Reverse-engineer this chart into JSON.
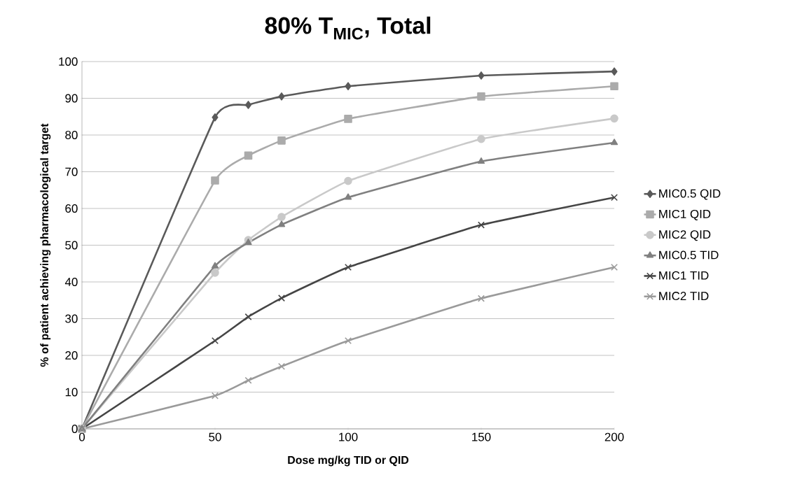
{
  "chart_data": {
    "type": "line",
    "title": "80% T$_{MIC}$, Total",
    "xlabel": "Dose mg/kg TID or QID",
    "ylabel": "% of patient achieving pharmacological target",
    "x": [
      0,
      50,
      62.5,
      75,
      100,
      150,
      200
    ],
    "xlim": [
      0,
      200
    ],
    "xticks": [
      0,
      50,
      100,
      150,
      200
    ],
    "ylim": [
      0,
      100
    ],
    "yticks": [
      0,
      10,
      20,
      30,
      40,
      50,
      60,
      70,
      80,
      90,
      100
    ],
    "grid": "y",
    "legend": "right",
    "line_style": "solid",
    "series": [
      {
        "name": "MIC0.5 QID",
        "color": "#5a5a5a",
        "marker": "diamond",
        "values": [
          0,
          84.8,
          88.2,
          90.5,
          93.3,
          96.2,
          97.3
        ]
      },
      {
        "name": "MIC1 QID",
        "color": "#ababab",
        "marker": "square",
        "values": [
          0,
          67.6,
          74.4,
          78.5,
          84.4,
          90.5,
          93.3
        ]
      },
      {
        "name": "MIC2 QID",
        "color": "#c9c9c9",
        "marker": "circle",
        "values": [
          0,
          42.5,
          51.4,
          57.7,
          67.5,
          78.9,
          84.5
        ]
      },
      {
        "name": "MIC0.5 TID",
        "color": "#808080",
        "marker": "triangle",
        "values": [
          0,
          44.3,
          50.7,
          55.6,
          63,
          72.8,
          77.9
        ]
      },
      {
        "name": "MIC1 TID",
        "color": "#454545",
        "marker": "cross",
        "values": [
          0,
          24,
          30.5,
          35.6,
          44,
          55.5,
          63
        ]
      },
      {
        "name": "MIC2 TID",
        "color": "#9a9a9a",
        "marker": "cross",
        "values": [
          0,
          9,
          13.2,
          17,
          24,
          35.5,
          44
        ]
      }
    ]
  }
}
